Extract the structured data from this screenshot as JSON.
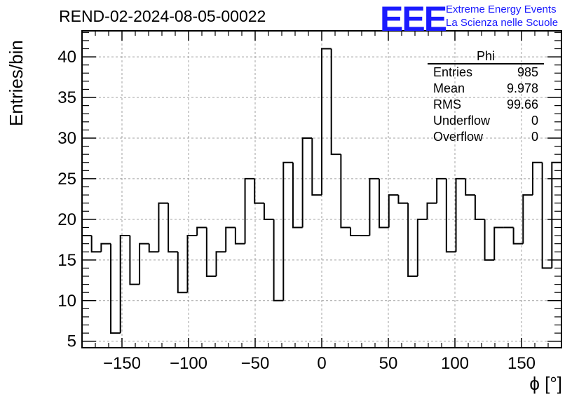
{
  "header": {
    "run_title": "REND-02-2024-08-05-00022",
    "logo": "EEE",
    "logo_line1": "Extreme Energy Events",
    "logo_line2": "La Scienza nelle Scuole"
  },
  "stats_box": {
    "title": "Phi",
    "rows": [
      {
        "label": "Entries",
        "value": "985"
      },
      {
        "label": "Mean",
        "value": "9.978"
      },
      {
        "label": "RMS",
        "value": "99.66"
      },
      {
        "label": "Underflow",
        "value": "0"
      },
      {
        "label": "Overflow",
        "value": "0"
      }
    ]
  },
  "chart_data": {
    "type": "bar",
    "title": "REND-02-2024-08-05-00022",
    "xlabel": "ϕ [°]",
    "ylabel": "Entries/bin",
    "xlim": [
      -180,
      180
    ],
    "ylim": [
      4.2,
      43.2
    ],
    "bin_width": 7.2,
    "values": [
      18,
      16,
      17,
      6,
      18,
      12,
      17,
      16,
      22,
      16,
      11,
      18,
      19,
      13,
      16,
      19,
      17,
      25,
      22,
      20,
      10,
      27,
      19,
      30,
      23,
      41,
      28,
      19,
      18,
      18,
      25,
      19,
      23,
      22,
      13,
      20,
      22,
      25,
      16,
      25,
      23,
      20,
      15,
      19,
      19,
      17,
      23,
      27,
      14,
      27
    ],
    "x_ticks": [
      -150,
      -100,
      -50,
      0,
      50,
      100,
      150
    ],
    "x_tick_labels": [
      "−150",
      "−100",
      "−50",
      "0",
      "50",
      "100",
      "150"
    ],
    "y_ticks": [
      5,
      10,
      15,
      20,
      25,
      30,
      35,
      40
    ],
    "y_tick_labels": [
      "5",
      "10",
      "15",
      "20",
      "25",
      "30",
      "35",
      "40"
    ],
    "grid": true,
    "colors": {
      "line": "#000000",
      "grid": "#a0a0a0",
      "logo": "#1a1aff"
    }
  }
}
